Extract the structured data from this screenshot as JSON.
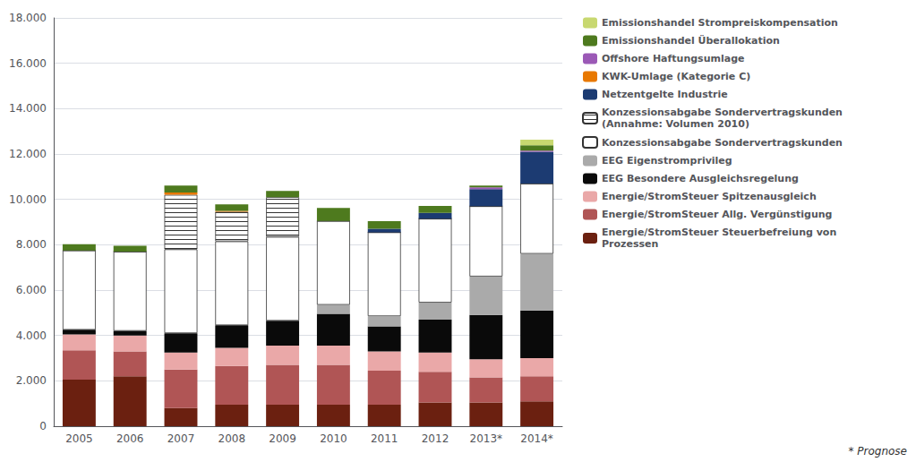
{
  "chart_data": {
    "type": "bar",
    "stacked": true,
    "categories": [
      "2005",
      "2006",
      "2007",
      "2008",
      "2009",
      "2010",
      "2011",
      "2012",
      "2013*",
      "2014*"
    ],
    "series": [
      {
        "name": "Energie/StromSteuer Steuerbefreiung von\nProzessen",
        "color": "#6B2010",
        "values": [
          2050,
          2200,
          800,
          950,
          950,
          950,
          950,
          1050,
          1050,
          1100
        ]
      },
      {
        "name": "Energie/StromSteuer Allg. Vergünstigung",
        "color": "#B05555",
        "values": [
          1300,
          1100,
          1700,
          1700,
          1750,
          1750,
          1500,
          1350,
          1100,
          1100
        ]
      },
      {
        "name": "Energie/StromSteuer Spitzenausgleich",
        "color": "#EAA8A8",
        "values": [
          700,
          700,
          750,
          800,
          850,
          850,
          850,
          850,
          800,
          800
        ]
      },
      {
        "name": "EEG Besondere Ausgleichsregelung",
        "color": "#0A0A0A",
        "values": [
          200,
          200,
          850,
          1000,
          1100,
          1400,
          1100,
          1450,
          1950,
          2100
        ]
      },
      {
        "name": "EEG Eigenstromprivileg",
        "color": "#AAAAAA",
        "values": [
          0,
          0,
          0,
          0,
          0,
          400,
          450,
          750,
          1700,
          2500
        ]
      },
      {
        "name": "Konzessionsabgabe Sondervertragskunden",
        "color": "#FFFFFF",
        "values": [
          3500,
          3500,
          3700,
          3700,
          3700,
          3700,
          3700,
          3700,
          3100,
          3100
        ]
      },
      {
        "name": "Konzessionsabgabe Sondervertragskunden\n(Annahme: Volumen 2010)",
        "color": "#FFFFFF",
        "line_style": "hatch",
        "values": [
          0,
          0,
          2400,
          1300,
          1750,
          0,
          0,
          0,
          0,
          0
        ]
      },
      {
        "name": "Netzentgelte Industrie",
        "color": "#1C3B72",
        "values": [
          0,
          0,
          0,
          0,
          0,
          0,
          150,
          250,
          750,
          1400
        ]
      },
      {
        "name": "KWK-Umlage (Kategorie C)",
        "color": "#E87800",
        "values": [
          0,
          0,
          100,
          40,
          0,
          0,
          0,
          0,
          0,
          0
        ]
      },
      {
        "name": "Offshore Haftungsumlage",
        "color": "#9B59B6",
        "values": [
          0,
          0,
          0,
          0,
          0,
          0,
          0,
          0,
          80,
          50
        ]
      },
      {
        "name": "Emissionshandel Überallokation",
        "color": "#4E7A1E",
        "values": [
          270,
          250,
          310,
          290,
          270,
          570,
          340,
          310,
          80,
          230
        ]
      },
      {
        "name": "Emissionshandel Strompreiskompensation",
        "color": "#C8D870",
        "values": [
          0,
          0,
          0,
          0,
          0,
          0,
          0,
          0,
          0,
          250
        ]
      }
    ],
    "ylim": [
      0,
      18000
    ],
    "yticks": [
      0,
      {
        "value": 2000,
        "label": "2.000"
      },
      {
        "value": 4000,
        "label": "4.000"
      },
      {
        "value": 6000,
        "label": "6.000"
      },
      {
        "value": 8000,
        "label": "8.000"
      },
      {
        "value": 10000,
        "label": "10.000"
      },
      {
        "value": 12000,
        "label": "12.000"
      },
      {
        "value": 14000,
        "label": "14.000"
      },
      {
        "value": 16000,
        "label": "16.000"
      },
      {
        "value": 18000,
        "label": "18.000"
      }
    ],
    "grid": true,
    "legend": "right",
    "annotations": [
      "* Prognose"
    ]
  }
}
